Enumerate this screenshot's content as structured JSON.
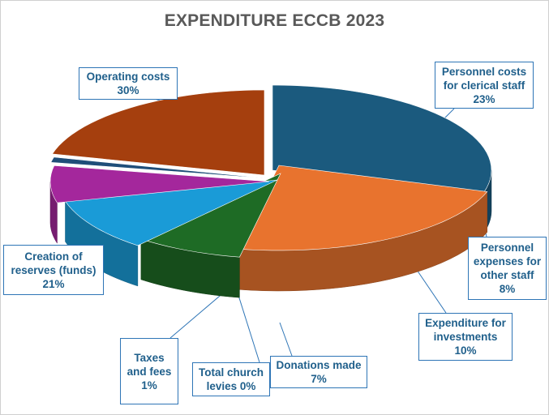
{
  "chart_data": {
    "type": "pie",
    "title": "EXPENDITURE ECCB 2023",
    "slices": [
      {
        "label": "Operating costs",
        "value": 30,
        "value_label": "30%",
        "color": "#1b5a7e"
      },
      {
        "label": "Personnel costs for clerical staff",
        "value": 23,
        "value_label": "23%",
        "color": "#e8732e"
      },
      {
        "label": "Personnel expenses for other staff",
        "value": 8,
        "value_label": "8%",
        "color": "#1e6b25"
      },
      {
        "label": "Expenditure for investments",
        "value": 10,
        "value_label": "10%",
        "color": "#1a9bd7"
      },
      {
        "label": "Donations made",
        "value": 7,
        "value_label": "7%",
        "color": "#a4279c"
      },
      {
        "label": "Total church levies",
        "value": 0,
        "value_label": "0%",
        "color": "#4d8a3a"
      },
      {
        "label": "Taxes and fees",
        "value": 1,
        "value_label": "1%",
        "color": "#1f4e79"
      },
      {
        "label": "Creation of reserves (funds)",
        "value": 21,
        "value_label": "21%",
        "color": "#a53f0e"
      }
    ],
    "legend": "none",
    "style": "3d-exploded"
  },
  "callouts": {
    "operating": {
      "label": "Operating costs",
      "value": "30%"
    },
    "clerical": {
      "label": "Personnel costs\nfor clerical staff",
      "value": "23%"
    },
    "other_staff": {
      "label": "Personnel\nexpenses for\nother staff",
      "value": "8%"
    },
    "investments": {
      "label": "Expenditure for\ninvestments",
      "value": "10%"
    },
    "donations": {
      "label": "Donations made",
      "value": "7%"
    },
    "levies": {
      "label": "Total church\nlevies",
      "value": "0%"
    },
    "taxes": {
      "label": "Taxes\nand fees",
      "value": "1%"
    },
    "reserves": {
      "label": "Creation of\nreserves (funds)",
      "value": "21%"
    }
  }
}
